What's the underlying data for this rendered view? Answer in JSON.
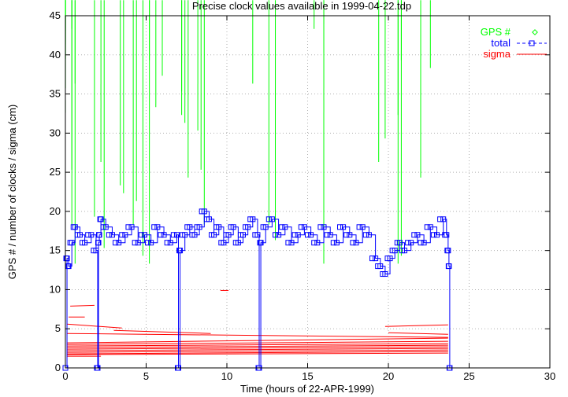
{
  "chart_data": {
    "type": "scatter",
    "title": "Precise clock values available in 1999-04-22.tdp",
    "xlabel": "Time (hours of 22-APR-1999)",
    "ylabel": "GPS # / number of clocks / sigma (cm)",
    "xlim": [
      0,
      30
    ],
    "ylim": [
      0,
      45
    ],
    "x_ticks": [
      "0",
      "5",
      "10",
      "15",
      "20",
      "25",
      "30"
    ],
    "y_ticks": [
      "0",
      "5",
      "10",
      "15",
      "20",
      "25",
      "30",
      "35",
      "40",
      "45"
    ],
    "grid": true,
    "legend_position": "top-right",
    "colors": {
      "gps": "#00ff00",
      "total": "#0000ff",
      "sigma": "#ff0000",
      "grid": "#b0b0b0"
    },
    "series": [
      {
        "name": "GPS #",
        "marker": "diamond",
        "segments": [
          {
            "prn": 43,
            "spans": [
              [
                0.4,
                2.0
              ],
              [
                15.4,
                23.2
              ]
            ]
          },
          {
            "prn": 40,
            "spans": [
              [
                0.0,
                9.4
              ],
              [
                16.0,
                23.8
              ]
            ]
          },
          {
            "prn": 39,
            "spans": [
              [
                0.0,
                4.4
              ],
              [
                5.2,
                15.2
              ],
              [
                20.8,
                23.8
              ]
            ]
          },
          {
            "prn": 38,
            "spans": [
              [
                0.0,
                15.8
              ],
              [
                22.6,
                23.8
              ]
            ]
          },
          {
            "prn": 37,
            "spans": [
              [
                0.0,
                4.8
              ],
              [
                6.0,
                23.8
              ]
            ]
          },
          {
            "prn": 36,
            "spans": [
              [
                0.6,
                11.2
              ],
              [
                11.6,
                23.4
              ]
            ]
          },
          {
            "prn": 35,
            "spans": [
              [
                0.0,
                6.4
              ],
              [
                7.2,
                23.8
              ]
            ]
          },
          {
            "prn": 34,
            "spans": [
              [
                0.0,
                23.8
              ]
            ]
          },
          {
            "prn": 33,
            "spans": [
              [
                5.6,
                23.8
              ]
            ]
          },
          {
            "prn": 32,
            "spans": [
              [
                0.0,
                1.8
              ],
              [
                7.2,
                20.2
              ],
              [
                20.6,
                23.8
              ]
            ]
          },
          {
            "prn": 31,
            "spans": [
              [
                7.4,
                23.8
              ]
            ]
          },
          {
            "prn": 30,
            "spans": [
              [
                0.0,
                7.6
              ],
              [
                8.2,
                23.8
              ]
            ]
          },
          {
            "prn": 29,
            "spans": [
              [
                0.0,
                9.6
              ],
              [
                19.8,
                23.8
              ]
            ]
          },
          {
            "prn": 26,
            "spans": [
              [
                0.0,
                0.4
              ],
              [
                2.2,
                12.2
              ],
              [
                19.4,
                23.8
              ]
            ]
          },
          {
            "prn": 25,
            "spans": [
              [
                0.4,
                6.2
              ],
              [
                8.4,
                23.2
              ]
            ]
          },
          {
            "prn": 24,
            "spans": [
              [
                0.0,
                7.2
              ],
              [
                7.6,
                21.4
              ],
              [
                22.0,
                23.8
              ]
            ]
          },
          {
            "prn": 23,
            "spans": [
              [
                3.4,
                20.4
              ]
            ]
          },
          {
            "prn": 22,
            "spans": [
              [
                3.6,
                23.2
              ]
            ]
          },
          {
            "prn": 21,
            "spans": [
              [
                4.4,
                23.6
              ]
            ]
          },
          {
            "prn": 19,
            "spans": [
              [
                1.8,
                23.8
              ]
            ]
          },
          {
            "prn": 18,
            "spans": [
              [
                0.4,
                1.6
              ],
              [
                4.2,
                5.8
              ],
              [
                8.6,
                11.8
              ],
              [
                12.6,
                23.8
              ]
            ]
          },
          {
            "prn": 17,
            "spans": [
              [
                0.0,
                23.8
              ]
            ]
          },
          {
            "prn": 16,
            "spans": [
              [
                0.0,
                12.4
              ],
              [
                13.0,
                23.8
              ]
            ]
          },
          {
            "prn": 15,
            "spans": [
              [
                0.0,
                1.6
              ],
              [
                2.4,
                23.8
              ]
            ]
          },
          {
            "prn": 14,
            "spans": [
              [
                0.0,
                4.2
              ],
              [
                4.8,
                20.4
              ],
              [
                20.8,
                23.8
              ]
            ]
          },
          {
            "prn": 13,
            "spans": [
              [
                0.6,
                3.2
              ],
              [
                5.2,
                15.2
              ],
              [
                16.0,
                19.6
              ],
              [
                20.6,
                23.8
              ]
            ]
          }
        ]
      },
      {
        "name": "total",
        "marker": "square",
        "x": [
          0.0,
          0.1,
          0.2,
          0.4,
          0.6,
          0.9,
          1.2,
          1.6,
          1.9,
          2.0,
          2.05,
          2.1,
          2.2,
          2.5,
          2.9,
          3.3,
          3.7,
          4.1,
          4.5,
          4.9,
          5.3,
          5.7,
          6.1,
          6.5,
          6.9,
          7.0,
          7.1,
          7.4,
          7.7,
          8.0,
          8.3,
          8.6,
          8.9,
          9.2,
          9.5,
          9.8,
          10.1,
          10.4,
          10.7,
          11.0,
          11.3,
          11.6,
          11.9,
          12.0,
          12.1,
          12.4,
          12.8,
          13.2,
          13.6,
          14.0,
          14.4,
          14.8,
          15.2,
          15.6,
          16.0,
          16.4,
          16.8,
          17.2,
          17.6,
          18.0,
          18.4,
          18.8,
          19.2,
          19.5,
          19.8,
          20.1,
          20.4,
          20.7,
          21.0,
          21.4,
          21.8,
          22.2,
          22.6,
          23.0,
          23.4,
          23.6,
          23.7,
          23.75,
          23.8
        ],
        "y": [
          0,
          14,
          13,
          16,
          18,
          17,
          16,
          17,
          15,
          0,
          16,
          17,
          19,
          18,
          17,
          16,
          17,
          18,
          16,
          17,
          16,
          18,
          17,
          16,
          17,
          0,
          15,
          17,
          18,
          17,
          18,
          20,
          19,
          17,
          18,
          16,
          17,
          18,
          16,
          17,
          18,
          19,
          17,
          0,
          16,
          18,
          19,
          17,
          18,
          16,
          17,
          18,
          17,
          16,
          18,
          17,
          16,
          18,
          17,
          16,
          18,
          17,
          14,
          13,
          12,
          14,
          15,
          16,
          15,
          16,
          17,
          16,
          18,
          17,
          19,
          17,
          15,
          13,
          0
        ]
      },
      {
        "name": "sigma",
        "marker": "line",
        "bands": [
          {
            "y_start": 3.2,
            "y_end": 3.8,
            "x_start": 0.1,
            "x_end": 23.7
          },
          {
            "y_start": 3.0,
            "y_end": 3.4,
            "x_start": 0.1,
            "x_end": 23.7
          },
          {
            "y_start": 2.8,
            "y_end": 3.1,
            "x_start": 0.1,
            "x_end": 23.7
          },
          {
            "y_start": 2.6,
            "y_end": 2.9,
            "x_start": 0.1,
            "x_end": 23.7
          },
          {
            "y_start": 2.4,
            "y_end": 2.7,
            "x_start": 0.1,
            "x_end": 23.7
          },
          {
            "y_start": 2.2,
            "y_end": 2.5,
            "x_start": 0.1,
            "x_end": 23.7
          },
          {
            "y_start": 2.0,
            "y_end": 2.3,
            "x_start": 0.1,
            "x_end": 23.7
          },
          {
            "y_start": 1.8,
            "y_end": 2.1,
            "x_start": 0.1,
            "x_end": 23.7
          },
          {
            "y_start": 1.7,
            "y_end": 1.9,
            "x_start": 0.1,
            "x_end": 23.7
          },
          {
            "y_start": 4.4,
            "y_end": 3.9,
            "x_start": 0.1,
            "x_end": 23.7
          },
          {
            "y_start": 5.6,
            "y_end": 5.1,
            "x_start": 0.1,
            "x_end": 3.5
          },
          {
            "y_start": 4.8,
            "y_end": 4.4,
            "x_start": 3.0,
            "x_end": 9.0
          },
          {
            "y_start": 4.5,
            "y_end": 4.3,
            "x_start": 20.0,
            "x_end": 23.7
          },
          {
            "y_start": 5.3,
            "y_end": 5.5,
            "x_start": 19.8,
            "x_end": 23.7
          },
          {
            "y_start": 7.9,
            "y_end": 8.0,
            "x_start": 0.3,
            "x_end": 1.8
          },
          {
            "y_start": 9.9,
            "y_end": 9.9,
            "x_start": 9.6,
            "x_end": 10.1
          },
          {
            "y_start": 6.5,
            "y_end": 6.5,
            "x_start": 0.2,
            "x_end": 1.2
          },
          {
            "y_start": 1.5,
            "y_end": 1.5,
            "x_start": 0.1,
            "x_end": 2.2
          }
        ]
      }
    ]
  }
}
